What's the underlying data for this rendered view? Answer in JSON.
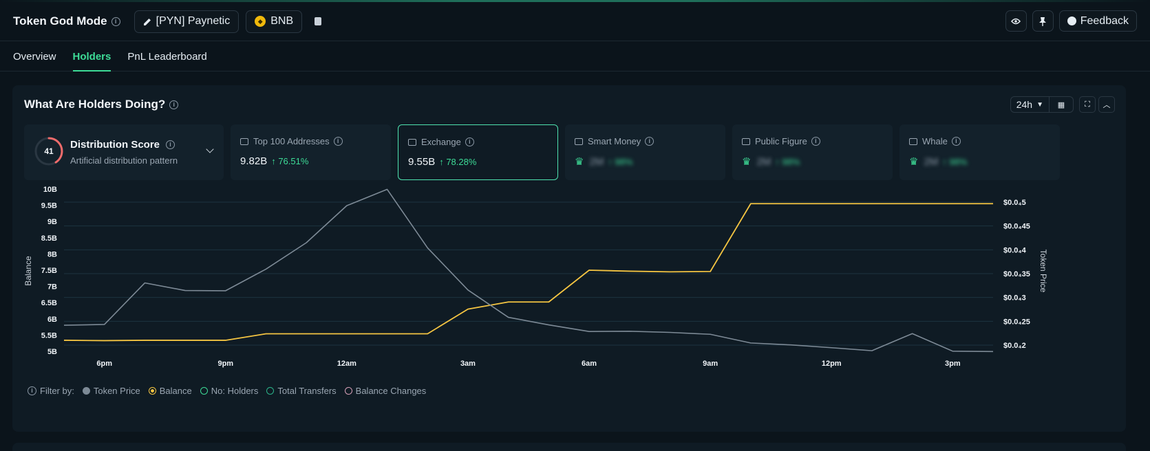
{
  "header": {
    "title": "Token God Mode",
    "token_pill": "[PYN] Paynetic",
    "chain_pill": "BNB",
    "feedback_label": "Feedback"
  },
  "tabs": [
    {
      "label": "Overview",
      "active": false
    },
    {
      "label": "Holders",
      "active": true
    },
    {
      "label": "PnL Leaderboard",
      "active": false
    }
  ],
  "panel": {
    "title": "What Are Holders Doing?",
    "timeframe": "24h"
  },
  "distribution": {
    "score": "41",
    "score_fraction": 0.41,
    "title": "Distribution Score",
    "subtitle": "Artificial distribution pattern"
  },
  "cards": [
    {
      "label": "Top 100 Addresses",
      "value": "9.82B",
      "change": "↑ 76.51%",
      "blurred": false,
      "selected": false
    },
    {
      "label": "Exchange",
      "value": "9.55B",
      "change": "↑ 78.28%",
      "blurred": false,
      "selected": true
    },
    {
      "label": "Smart Money",
      "value": "2M",
      "change": "↑ 98%",
      "blurred": true,
      "selected": false
    },
    {
      "label": "Public Figure",
      "value": "2M",
      "change": "↑ 98%",
      "blurred": true,
      "selected": false
    },
    {
      "label": "Whale",
      "value": "2M",
      "change": "↑ 98%",
      "blurred": true,
      "selected": false
    }
  ],
  "chart_data": {
    "type": "line",
    "x": [
      "5pm",
      "6pm",
      "7pm",
      "8pm",
      "9pm",
      "10pm",
      "11pm",
      "12am",
      "1am",
      "2am",
      "3am",
      "4am",
      "5am",
      "6am",
      "7am",
      "8am",
      "9am",
      "10am",
      "11am",
      "12pm",
      "1pm",
      "2pm",
      "3pm",
      "4pm"
    ],
    "xticks": [
      "6pm",
      "9pm",
      "12am",
      "3am",
      "6am",
      "9am",
      "12pm",
      "3pm"
    ],
    "ylabel": "Balance",
    "y2label": "Token Price",
    "yticks": [
      "5B",
      "5.5B",
      "6B",
      "6.5B",
      "7B",
      "7.5B",
      "8B",
      "8.5B",
      "9B",
      "9.5B",
      "10B"
    ],
    "ylim": [
      5,
      10
    ],
    "y2ticks": [
      "$0.0₄2",
      "$0.0₄25",
      "$0.0₄3",
      "$0.0₄35",
      "$0.0₄4",
      "$0.0₄45",
      "$0.0₄5"
    ],
    "y2lim": [
      2e-05,
      5e-05
    ],
    "series": [
      {
        "name": "Balance",
        "color": "#f5c542",
        "axis": "left",
        "values": [
          5.34,
          5.33,
          5.34,
          5.34,
          5.34,
          5.54,
          5.54,
          5.54,
          5.54,
          5.54,
          6.3,
          6.52,
          6.52,
          7.5,
          7.47,
          7.45,
          7.46,
          9.55,
          9.55,
          9.55,
          9.55,
          9.55,
          9.55,
          9.55
        ]
      },
      {
        "name": "Token Price",
        "color": "#7d8a96",
        "axis": "right",
        "values": [
          2.417e-05,
          2.433e-05,
          3.305e-05,
          3.146e-05,
          3.141e-05,
          3.595e-05,
          4.149e-05,
          4.926e-05,
          5.268e-05,
          4.04e-05,
          3.157e-05,
          2.583e-05,
          2.425e-05,
          2.286e-05,
          2.291e-05,
          2.267e-05,
          2.227e-05,
          2.045e-05,
          2.004e-05,
          1.946e-05,
          1.883e-05,
          2.242e-05,
          1.873e-05,
          1.865e-05
        ]
      }
    ]
  },
  "filters": {
    "label": "Filter by:",
    "items": [
      {
        "label": "Token Price",
        "color": "#7d8a96",
        "active": true
      },
      {
        "label": "Balance",
        "color": "#f5c542",
        "active": true
      },
      {
        "label": "No: Holders",
        "color": "#3ddc97",
        "active": false
      },
      {
        "label": "Total Transfers",
        "color": "#2bb58a",
        "active": false
      },
      {
        "label": "Balance Changes",
        "color": "#d8a0b8",
        "active": false
      }
    ]
  }
}
